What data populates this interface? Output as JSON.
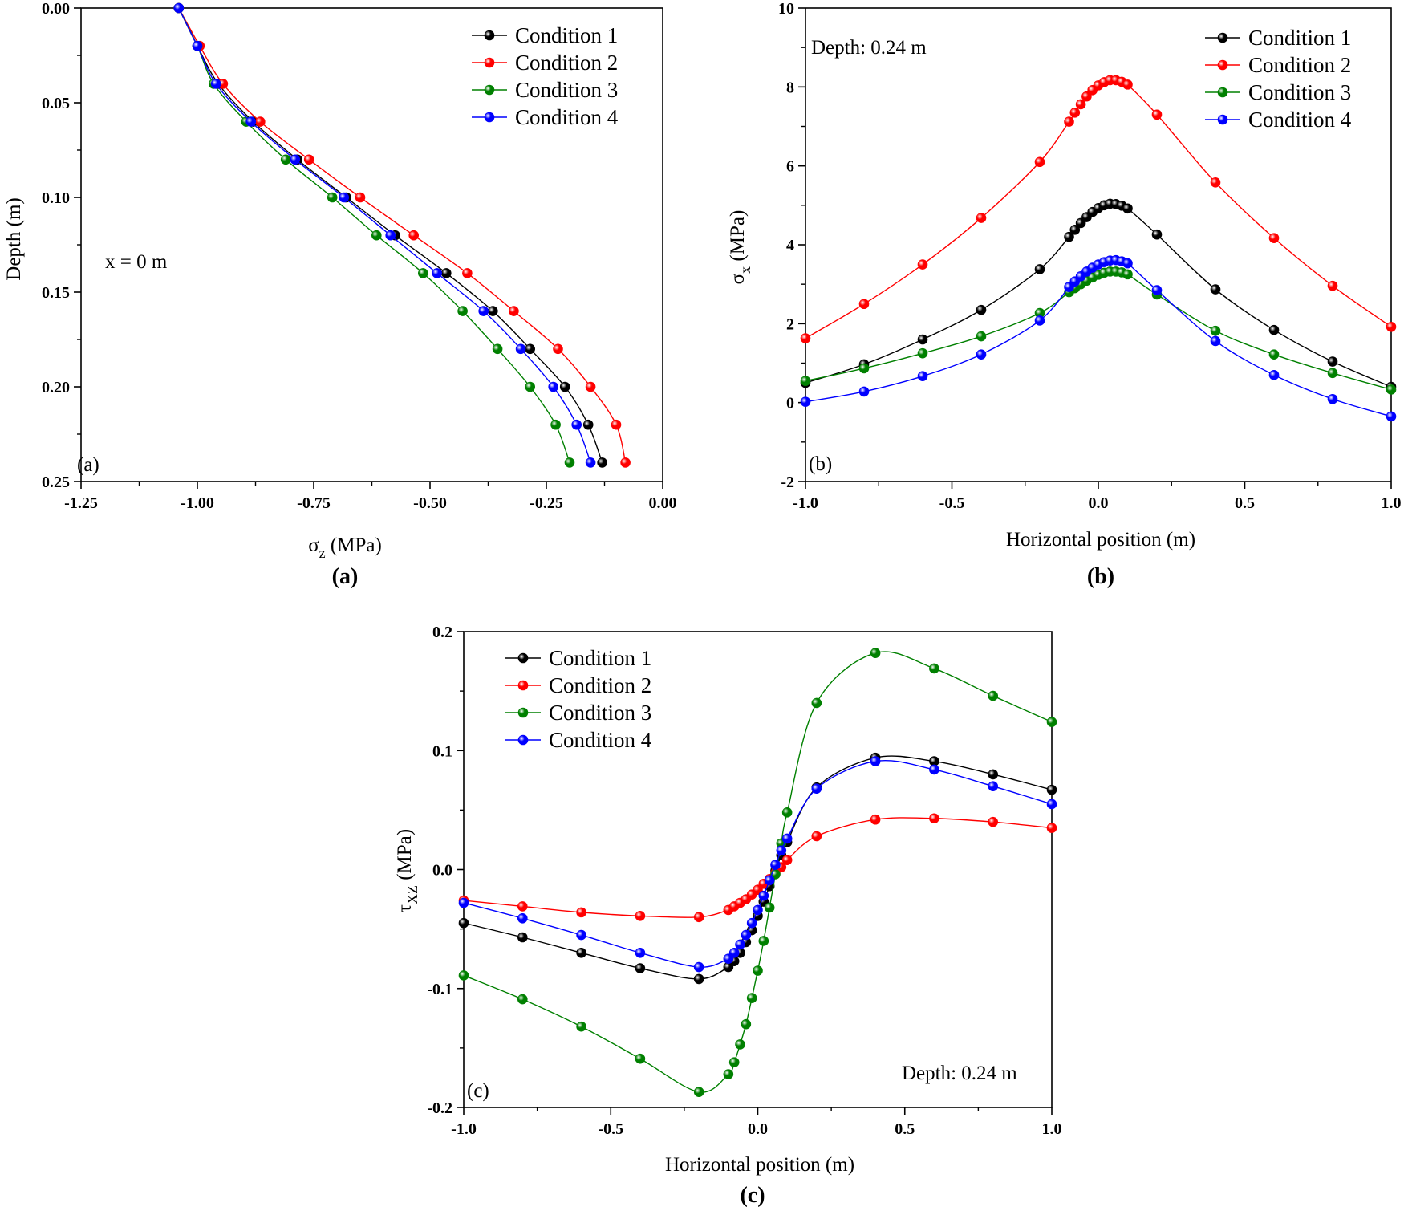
{
  "colors": {
    "Condition 1": "#000000",
    "Condition 2": "#ff0000",
    "Condition 3": "#008000",
    "Condition 4": "#0000ff"
  },
  "chart_data": [
    {
      "id": "a",
      "type": "line",
      "orientation": "depth-profile",
      "xlabel_main": "σ",
      "xlabel_sub": "z",
      "xlabel_unit": " (MPa)",
      "ylabel": "Depth (m)",
      "xlim": [
        -1.25,
        0.0
      ],
      "ylim": [
        0.0,
        0.25
      ],
      "y_inverted": true,
      "xticks": [
        -1.25,
        -1.0,
        -0.75,
        -0.5,
        -0.25,
        0.0
      ],
      "xtick_labels": [
        "-1.25",
        "-1.00",
        "-0.75",
        "-0.50",
        "-0.25",
        "0.00"
      ],
      "yticks": [
        0.0,
        0.05,
        0.1,
        0.15,
        0.2,
        0.25
      ],
      "ytick_labels": [
        "0.00",
        "0.05",
        "0.10",
        "0.15",
        "0.20",
        "0.25"
      ],
      "panel_label": "(a)",
      "caption": "(a)",
      "annotation": "x = 0 m",
      "legend": [
        "Condition 1",
        "Condition 2",
        "Condition 3",
        "Condition 4"
      ],
      "legend_position": "top-right",
      "depths": [
        0.0,
        0.02,
        0.04,
        0.06,
        0.08,
        0.1,
        0.12,
        0.14,
        0.16,
        0.18,
        0.2,
        0.22,
        0.24
      ],
      "series": [
        {
          "name": "Condition 1",
          "values": [
            -1.04,
            -1.0,
            -0.955,
            -0.88,
            -0.785,
            -0.68,
            -0.575,
            -0.465,
            -0.365,
            -0.285,
            -0.21,
            -0.16,
            -0.13
          ]
        },
        {
          "name": "Condition 2",
          "values": [
            -1.04,
            -0.995,
            -0.945,
            -0.865,
            -0.76,
            -0.65,
            -0.535,
            -0.42,
            -0.32,
            -0.225,
            -0.155,
            -0.1,
            -0.08
          ]
        },
        {
          "name": "Condition 3",
          "values": [
            -1.04,
            -1.0,
            -0.965,
            -0.895,
            -0.81,
            -0.71,
            -0.615,
            -0.515,
            -0.43,
            -0.355,
            -0.285,
            -0.23,
            -0.2
          ]
        },
        {
          "name": "Condition 4",
          "values": [
            -1.04,
            -1.0,
            -0.96,
            -0.885,
            -0.79,
            -0.685,
            -0.585,
            -0.485,
            -0.385,
            -0.305,
            -0.235,
            -0.185,
            -0.155
          ]
        }
      ]
    },
    {
      "id": "b",
      "type": "line",
      "xlabel": "Horizontal position (m)",
      "ylabel_main": "σ",
      "ylabel_sub": "x",
      "ylabel_unit": " (MPa)",
      "xlim": [
        -1.0,
        1.0
      ],
      "ylim": [
        -2,
        10
      ],
      "xticks": [
        -1.0,
        -0.5,
        0.0,
        0.5,
        1.0
      ],
      "xtick_labels": [
        "-1.0",
        "-0.5",
        "0.0",
        "0.5",
        "1.0"
      ],
      "yticks": [
        -2,
        0,
        2,
        4,
        6,
        8,
        10
      ],
      "ytick_labels": [
        "-2",
        "0",
        "2",
        "4",
        "6",
        "8",
        "10"
      ],
      "panel_label": "(b)",
      "caption": "(b)",
      "annotation": "Depth: 0.24 m",
      "legend": [
        "Condition 1",
        "Condition 2",
        "Condition 3",
        "Condition 4"
      ],
      "legend_position": "top-right",
      "x": [
        -1.0,
        -0.8,
        -0.6,
        -0.4,
        -0.2,
        -0.1,
        -0.08,
        -0.06,
        -0.04,
        -0.02,
        0.0,
        0.02,
        0.04,
        0.06,
        0.08,
        0.1,
        0.2,
        0.4,
        0.6,
        0.8,
        1.0
      ],
      "series": [
        {
          "name": "Condition 1",
          "values": [
            0.5,
            0.97,
            1.6,
            2.35,
            3.38,
            4.2,
            4.38,
            4.55,
            4.7,
            4.83,
            4.93,
            5.0,
            5.04,
            5.03,
            4.99,
            4.92,
            4.26,
            2.87,
            1.84,
            1.04,
            0.4
          ]
        },
        {
          "name": "Condition 2",
          "values": [
            1.63,
            2.5,
            3.5,
            4.68,
            6.1,
            7.12,
            7.35,
            7.56,
            7.76,
            7.92,
            8.04,
            8.12,
            8.17,
            8.17,
            8.13,
            8.06,
            7.3,
            5.58,
            4.17,
            2.96,
            1.92
          ]
        },
        {
          "name": "Condition 3",
          "values": [
            0.55,
            0.87,
            1.25,
            1.68,
            2.27,
            2.8,
            2.9,
            3.0,
            3.09,
            3.17,
            3.24,
            3.29,
            3.32,
            3.32,
            3.3,
            3.25,
            2.74,
            1.82,
            1.22,
            0.75,
            0.33
          ]
        },
        {
          "name": "Condition 4",
          "values": [
            0.02,
            0.28,
            0.67,
            1.22,
            2.08,
            2.93,
            3.07,
            3.2,
            3.32,
            3.42,
            3.5,
            3.56,
            3.6,
            3.61,
            3.58,
            3.53,
            2.85,
            1.56,
            0.7,
            0.09,
            -0.35
          ]
        }
      ]
    },
    {
      "id": "c",
      "type": "line",
      "xlabel": "Horizontal position (m)",
      "ylabel_main": "τ",
      "ylabel_sub": "XZ",
      "ylabel_unit": " (MPa)",
      "xlim": [
        -1.0,
        1.0
      ],
      "ylim": [
        -0.2,
        0.2
      ],
      "xticks": [
        -1.0,
        -0.5,
        0.0,
        0.5,
        1.0
      ],
      "xtick_labels": [
        "-1.0",
        "-0.5",
        "0.0",
        "0.5",
        "1.0"
      ],
      "yticks": [
        -0.2,
        -0.1,
        0.0,
        0.1,
        0.2
      ],
      "ytick_labels": [
        "-0.2",
        "-0.1",
        "0.0",
        "0.1",
        "0.2"
      ],
      "panel_label": "(c)",
      "caption": "(c)",
      "annotation": "Depth: 0.24 m",
      "legend": [
        "Condition 1",
        "Condition 2",
        "Condition 3",
        "Condition 4"
      ],
      "legend_position": "top-left",
      "x": [
        -1.0,
        -0.8,
        -0.6,
        -0.4,
        -0.2,
        -0.1,
        -0.08,
        -0.06,
        -0.04,
        -0.02,
        0.0,
        0.02,
        0.04,
        0.06,
        0.08,
        0.1,
        0.2,
        0.4,
        0.6,
        0.8,
        1.0
      ],
      "series": [
        {
          "name": "Condition 1",
          "values": [
            -0.045,
            -0.057,
            -0.07,
            -0.083,
            -0.092,
            -0.082,
            -0.077,
            -0.07,
            -0.061,
            -0.051,
            -0.039,
            -0.027,
            -0.014,
            -0.001,
            0.012,
            0.023,
            0.069,
            0.094,
            0.091,
            0.08,
            0.067
          ]
        },
        {
          "name": "Condition 2",
          "values": [
            -0.026,
            -0.031,
            -0.036,
            -0.039,
            -0.04,
            -0.034,
            -0.031,
            -0.028,
            -0.025,
            -0.021,
            -0.017,
            -0.012,
            -0.008,
            -0.003,
            0.002,
            0.008,
            0.028,
            0.042,
            0.043,
            0.04,
            0.035
          ]
        },
        {
          "name": "Condition 3",
          "values": [
            -0.089,
            -0.109,
            -0.132,
            -0.159,
            -0.187,
            -0.172,
            -0.162,
            -0.147,
            -0.13,
            -0.108,
            -0.085,
            -0.06,
            -0.032,
            -0.004,
            0.022,
            0.048,
            0.14,
            0.182,
            0.169,
            0.146,
            0.124
          ]
        },
        {
          "name": "Condition 4",
          "values": [
            -0.028,
            -0.041,
            -0.055,
            -0.07,
            -0.082,
            -0.075,
            -0.07,
            -0.063,
            -0.055,
            -0.045,
            -0.034,
            -0.022,
            -0.009,
            0.004,
            0.016,
            0.026,
            0.068,
            0.091,
            0.084,
            0.07,
            0.055
          ]
        }
      ]
    }
  ]
}
